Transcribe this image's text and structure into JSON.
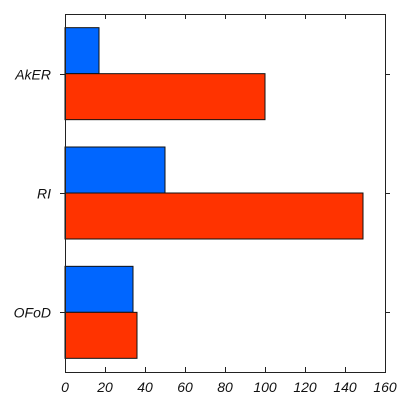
{
  "chart_data": {
    "type": "bar",
    "orientation": "horizontal",
    "categories": [
      "AkER",
      "RI",
      "OFoD"
    ],
    "series": [
      {
        "color": "#0066ff",
        "values": [
          17,
          50,
          34
        ]
      },
      {
        "color": "#ff3300",
        "values": [
          100,
          149,
          36
        ]
      }
    ],
    "xlim": [
      0,
      160
    ],
    "x_ticks": [
      0,
      20,
      40,
      60,
      80,
      100,
      120,
      140,
      160
    ],
    "title": "",
    "xlabel": "",
    "ylabel": "",
    "grid": false
  }
}
